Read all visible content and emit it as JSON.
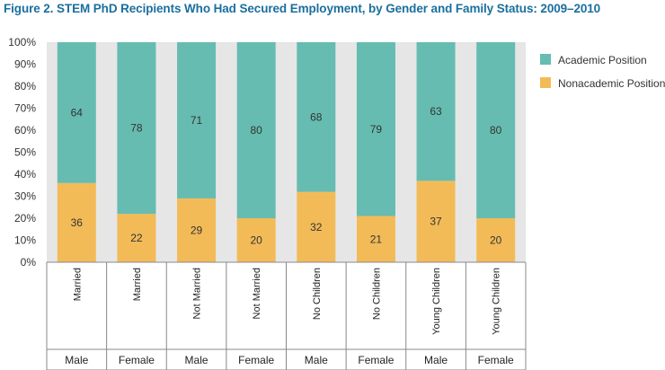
{
  "chart_data": {
    "type": "bar",
    "stacked": true,
    "title": "Figure 2. STEM PhD Recipients Who Had Secured Employment, by Gender and Family Status: 2009–2010",
    "categories": [
      "Married",
      "Married",
      "Not Married",
      "Not Married",
      "No Children",
      "No Children",
      "Young Children",
      "Young Children"
    ],
    "groups": [
      "Male",
      "Female",
      "Male",
      "Female",
      "Male",
      "Female",
      "Male",
      "Female"
    ],
    "series": [
      {
        "name": "Nonacademic Position",
        "values": [
          36,
          22,
          29,
          20,
          32,
          21,
          37,
          20
        ],
        "color": "#f2bb58"
      },
      {
        "name": "Academic Position",
        "values": [
          64,
          78,
          71,
          80,
          68,
          79,
          63,
          80
        ],
        "color": "#66bcb1"
      }
    ],
    "yticks": [
      "0%",
      "10%",
      "20%",
      "30%",
      "40%",
      "50%",
      "60%",
      "70%",
      "80%",
      "90%",
      "100%"
    ],
    "ylim": [
      0,
      100
    ],
    "legend_position": "right",
    "grid": false,
    "plot_background": "#e6e6e6"
  }
}
